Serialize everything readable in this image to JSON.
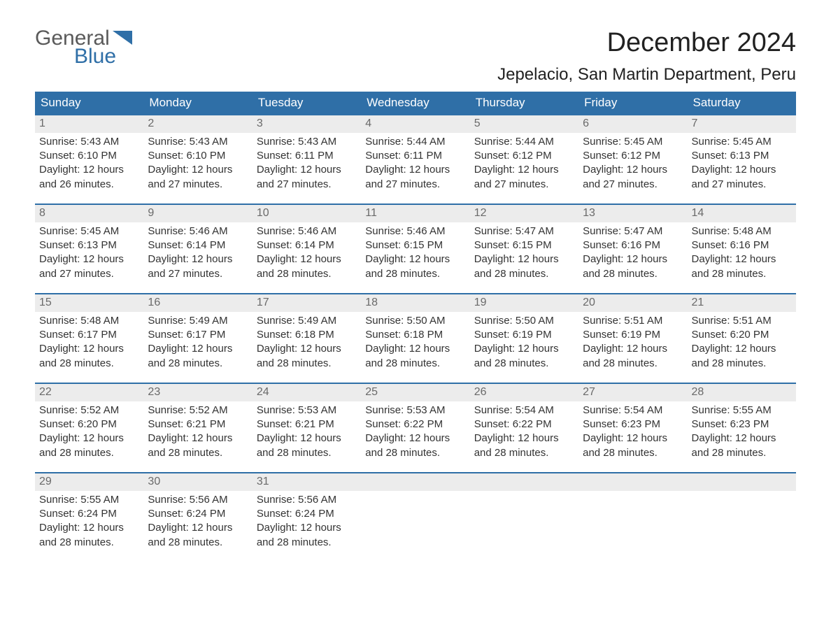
{
  "logo": {
    "line1": "General",
    "line2": "Blue"
  },
  "title": "December 2024",
  "location": "Jepelacio, San Martin Department, Peru",
  "brand_color": "#2f6fa7",
  "header_bg": "#2f6fa7",
  "row_bg": "#ececec",
  "columns": [
    "Sunday",
    "Monday",
    "Tuesday",
    "Wednesday",
    "Thursday",
    "Friday",
    "Saturday"
  ],
  "labels": {
    "sunrise": "Sunrise: ",
    "sunset": "Sunset: ",
    "daylight1": "Daylight: ",
    "daylight2_prefix": "and ",
    "daylight2_suffix": " minutes."
  },
  "days": [
    {
      "n": "1",
      "sunrise": "5:43 AM",
      "sunset": "6:10 PM",
      "dl_h": "12 hours",
      "dl_m": "26"
    },
    {
      "n": "2",
      "sunrise": "5:43 AM",
      "sunset": "6:10 PM",
      "dl_h": "12 hours",
      "dl_m": "27"
    },
    {
      "n": "3",
      "sunrise": "5:43 AM",
      "sunset": "6:11 PM",
      "dl_h": "12 hours",
      "dl_m": "27"
    },
    {
      "n": "4",
      "sunrise": "5:44 AM",
      "sunset": "6:11 PM",
      "dl_h": "12 hours",
      "dl_m": "27"
    },
    {
      "n": "5",
      "sunrise": "5:44 AM",
      "sunset": "6:12 PM",
      "dl_h": "12 hours",
      "dl_m": "27"
    },
    {
      "n": "6",
      "sunrise": "5:45 AM",
      "sunset": "6:12 PM",
      "dl_h": "12 hours",
      "dl_m": "27"
    },
    {
      "n": "7",
      "sunrise": "5:45 AM",
      "sunset": "6:13 PM",
      "dl_h": "12 hours",
      "dl_m": "27"
    },
    {
      "n": "8",
      "sunrise": "5:45 AM",
      "sunset": "6:13 PM",
      "dl_h": "12 hours",
      "dl_m": "27"
    },
    {
      "n": "9",
      "sunrise": "5:46 AM",
      "sunset": "6:14 PM",
      "dl_h": "12 hours",
      "dl_m": "27"
    },
    {
      "n": "10",
      "sunrise": "5:46 AM",
      "sunset": "6:14 PM",
      "dl_h": "12 hours",
      "dl_m": "28"
    },
    {
      "n": "11",
      "sunrise": "5:46 AM",
      "sunset": "6:15 PM",
      "dl_h": "12 hours",
      "dl_m": "28"
    },
    {
      "n": "12",
      "sunrise": "5:47 AM",
      "sunset": "6:15 PM",
      "dl_h": "12 hours",
      "dl_m": "28"
    },
    {
      "n": "13",
      "sunrise": "5:47 AM",
      "sunset": "6:16 PM",
      "dl_h": "12 hours",
      "dl_m": "28"
    },
    {
      "n": "14",
      "sunrise": "5:48 AM",
      "sunset": "6:16 PM",
      "dl_h": "12 hours",
      "dl_m": "28"
    },
    {
      "n": "15",
      "sunrise": "5:48 AM",
      "sunset": "6:17 PM",
      "dl_h": "12 hours",
      "dl_m": "28"
    },
    {
      "n": "16",
      "sunrise": "5:49 AM",
      "sunset": "6:17 PM",
      "dl_h": "12 hours",
      "dl_m": "28"
    },
    {
      "n": "17",
      "sunrise": "5:49 AM",
      "sunset": "6:18 PM",
      "dl_h": "12 hours",
      "dl_m": "28"
    },
    {
      "n": "18",
      "sunrise": "5:50 AM",
      "sunset": "6:18 PM",
      "dl_h": "12 hours",
      "dl_m": "28"
    },
    {
      "n": "19",
      "sunrise": "5:50 AM",
      "sunset": "6:19 PM",
      "dl_h": "12 hours",
      "dl_m": "28"
    },
    {
      "n": "20",
      "sunrise": "5:51 AM",
      "sunset": "6:19 PM",
      "dl_h": "12 hours",
      "dl_m": "28"
    },
    {
      "n": "21",
      "sunrise": "5:51 AM",
      "sunset": "6:20 PM",
      "dl_h": "12 hours",
      "dl_m": "28"
    },
    {
      "n": "22",
      "sunrise": "5:52 AM",
      "sunset": "6:20 PM",
      "dl_h": "12 hours",
      "dl_m": "28"
    },
    {
      "n": "23",
      "sunrise": "5:52 AM",
      "sunset": "6:21 PM",
      "dl_h": "12 hours",
      "dl_m": "28"
    },
    {
      "n": "24",
      "sunrise": "5:53 AM",
      "sunset": "6:21 PM",
      "dl_h": "12 hours",
      "dl_m": "28"
    },
    {
      "n": "25",
      "sunrise": "5:53 AM",
      "sunset": "6:22 PM",
      "dl_h": "12 hours",
      "dl_m": "28"
    },
    {
      "n": "26",
      "sunrise": "5:54 AM",
      "sunset": "6:22 PM",
      "dl_h": "12 hours",
      "dl_m": "28"
    },
    {
      "n": "27",
      "sunrise": "5:54 AM",
      "sunset": "6:23 PM",
      "dl_h": "12 hours",
      "dl_m": "28"
    },
    {
      "n": "28",
      "sunrise": "5:55 AM",
      "sunset": "6:23 PM",
      "dl_h": "12 hours",
      "dl_m": "28"
    },
    {
      "n": "29",
      "sunrise": "5:55 AM",
      "sunset": "6:24 PM",
      "dl_h": "12 hours",
      "dl_m": "28"
    },
    {
      "n": "30",
      "sunrise": "5:56 AM",
      "sunset": "6:24 PM",
      "dl_h": "12 hours",
      "dl_m": "28"
    },
    {
      "n": "31",
      "sunrise": "5:56 AM",
      "sunset": "6:24 PM",
      "dl_h": "12 hours",
      "dl_m": "28"
    }
  ],
  "start_weekday": 0,
  "total_cells": 35
}
